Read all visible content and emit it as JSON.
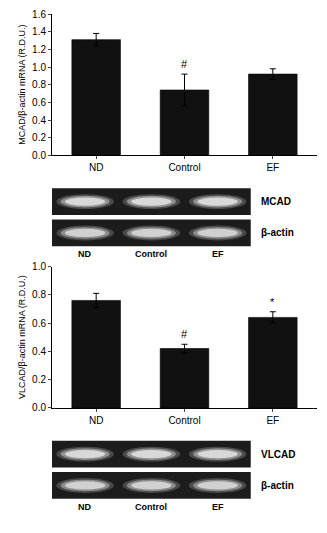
{
  "chart_data": [
    {
      "type": "bar",
      "categories": [
        "ND",
        "Control",
        "EF"
      ],
      "values": [
        1.31,
        0.74,
        0.92
      ],
      "errors": [
        0.07,
        0.18,
        0.06
      ],
      "color": "#111111",
      "ylabel": "MCAD/β-actin mRNA (R.D.U.)",
      "ylim": [
        0.0,
        1.6
      ],
      "yticks": [
        {
          "value": 0.0,
          "label": "0.0"
        },
        0.2,
        0.4,
        0.6,
        0.8,
        {
          "value": 1.0,
          "label": "1.0"
        },
        1.2,
        1.4,
        1.6
      ],
      "grid": false,
      "annotations": [
        {
          "category": "Control",
          "text": "#"
        },
        {
          "text": "MCAD"
        },
        {
          "text": "β-actin"
        }
      ]
    },
    {
      "type": "bar",
      "categories": [
        "ND",
        "Control",
        "EF"
      ],
      "values": [
        0.76,
        0.42,
        0.64
      ],
      "errors": [
        0.05,
        0.03,
        0.04
      ],
      "color": "#111111",
      "ylabel": "VLCAD/β-actin mRNA (R.D.U.)",
      "ylim": [
        0.0,
        1.0
      ],
      "yticks": [
        {
          "value": 0.0,
          "label": "0.0"
        },
        0.2,
        0.4,
        0.6,
        0.8,
        {
          "value": 1.0,
          "label": "1.0"
        }
      ],
      "grid": false,
      "annotations": [
        {
          "category": "Control",
          "text": "#"
        },
        {
          "category": "EF",
          "text": "*"
        },
        {
          "text": "VLCAD"
        },
        {
          "text": "β-actin"
        }
      ]
    }
  ]
}
